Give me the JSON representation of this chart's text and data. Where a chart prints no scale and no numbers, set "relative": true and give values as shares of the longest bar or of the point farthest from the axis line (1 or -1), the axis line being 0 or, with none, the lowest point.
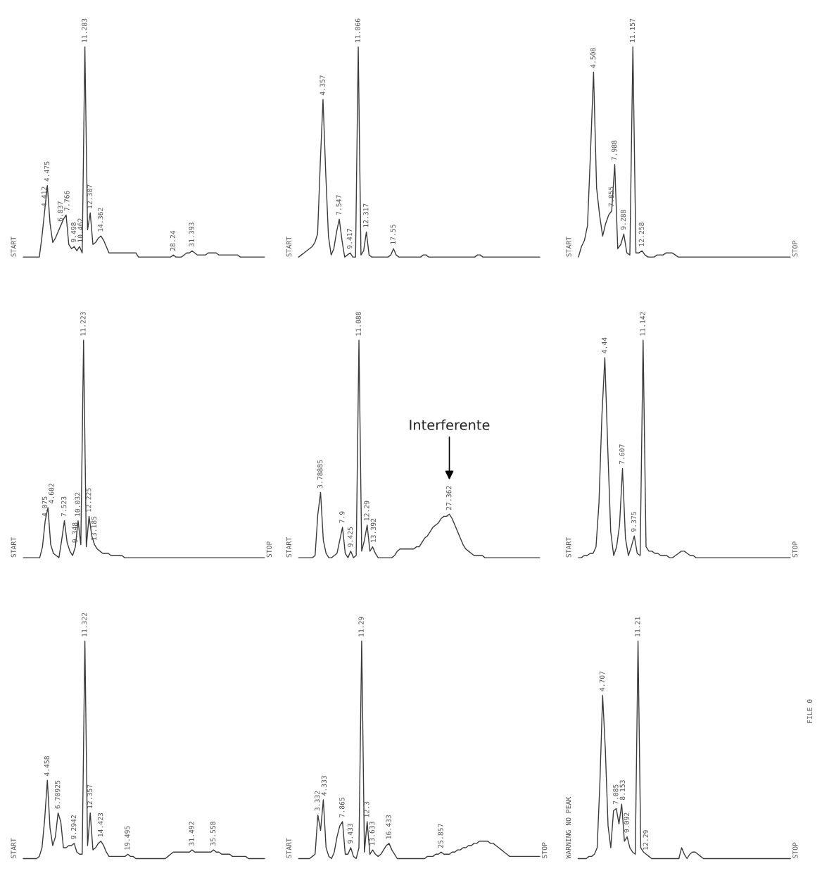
{
  "chart_data": [
    {
      "type": "line",
      "relative": true,
      "tick_labels": false,
      "categories": [
        null,
        null,
        null,
        null,
        null,
        null,
        null,
        null,
        null,
        null,
        null,
        null,
        null,
        null,
        null,
        null,
        null,
        null,
        null,
        null,
        null,
        null,
        null,
        null,
        null,
        null,
        null,
        null,
        null,
        null,
        null,
        null,
        null,
        null,
        null,
        null,
        null,
        null,
        null,
        null,
        null,
        null,
        null,
        null,
        null,
        null,
        null,
        null,
        null,
        null,
        null,
        null,
        null,
        null,
        null,
        null,
        null,
        null,
        null,
        null,
        null,
        null,
        null,
        null,
        null,
        null,
        null,
        null,
        null,
        null,
        null,
        null,
        null,
        null,
        null,
        null,
        null,
        null,
        null,
        null,
        null,
        null,
        null,
        null,
        null,
        null,
        null,
        null,
        null,
        null,
        null
      ],
      "series": [
        {
          "color": "#3a3a3a",
          "values": [
            0,
            0,
            0,
            0,
            0,
            0,
            0,
            0.1,
            0.22,
            0.34,
            0.16,
            0.07,
            0.09,
            0.12,
            0.15,
            0.18,
            0.2,
            0.06,
            0.04,
            0.05,
            0.03,
            0.05,
            0.02,
            1,
            0.13,
            0.21,
            0.06,
            0.07,
            0.09,
            0.1,
            0.08,
            0.05,
            0.02,
            0.02,
            0.02,
            0.02,
            0.02,
            0.02,
            0.02,
            0.02,
            0.02,
            0.02,
            0.02,
            0,
            0,
            0,
            0,
            0,
            0,
            0,
            0,
            0,
            0,
            0,
            0,
            0,
            0.01,
            0,
            0,
            0,
            0.01,
            0.02,
            0.02,
            0.03,
            0.02,
            0.01,
            0.01,
            0.01,
            0.01,
            0.02,
            0.02,
            0.02,
            0.02,
            0.01,
            0.01,
            0.01,
            0.01,
            0.01,
            0.01,
            0.01,
            0.01,
            0,
            0,
            0,
            0,
            0,
            0,
            0,
            0,
            0,
            0
          ]
        }
      ],
      "annotations": [
        "START",
        {
          "text": "4.412",
          "y": 0.22
        },
        {
          "text": "4.475",
          "y": 0.34
        },
        {
          "text": "6.837",
          "y": 0.15
        },
        {
          "text": "7.766",
          "y": 0.2
        },
        {
          "text": "9.498",
          "y": 0.05
        },
        {
          "text": "10.462",
          "y": 0.05
        },
        {
          "text": "11.283",
          "y": 1
        },
        {
          "text": "12.307",
          "y": 0.21
        },
        {
          "text": "14.362",
          "y": 0.1
        },
        {
          "text": "28.24",
          "y": 0.01
        },
        {
          "text": "31.393",
          "y": 0.03
        }
      ]
    },
    {
      "type": "line",
      "relative": true,
      "tick_labels": false,
      "categories": [
        null,
        null,
        null,
        null,
        null,
        null,
        null,
        null,
        null,
        null,
        null,
        null,
        null,
        null,
        null,
        null,
        null,
        null,
        null,
        null,
        null,
        null,
        null,
        null,
        null,
        null,
        null,
        null,
        null,
        null,
        null,
        null,
        null,
        null,
        null,
        null,
        null,
        null,
        null,
        null,
        null,
        null,
        null,
        null,
        null,
        null,
        null,
        null,
        null,
        null,
        null,
        null,
        null,
        null,
        null,
        null,
        null,
        null,
        null,
        null,
        null,
        null,
        null,
        null,
        null,
        null,
        null,
        null,
        null,
        null,
        null,
        null,
        null,
        null,
        null,
        null,
        null,
        null,
        null,
        null,
        null,
        null,
        null,
        null,
        null,
        null,
        null,
        null,
        null,
        null
      ],
      "series": [
        {
          "color": "#3a3a3a",
          "values": [
            0,
            0.01,
            0.02,
            0.03,
            0.04,
            0.05,
            0.07,
            0.11,
            0.45,
            0.75,
            0.4,
            0.1,
            0.01,
            0.04,
            0.12,
            0.18,
            0.08,
            0,
            0.01,
            0.02,
            0,
            0,
            1,
            0.01,
            0.03,
            0.12,
            0.01,
            0,
            0,
            0,
            0,
            0,
            0,
            0,
            0.01,
            0.04,
            0.01,
            0,
            0,
            0,
            0,
            0,
            0,
            0,
            0,
            0,
            0.01,
            0.01,
            0,
            0,
            0,
            0,
            0,
            0,
            0,
            0,
            0,
            0,
            0,
            0,
            0,
            0,
            0,
            0,
            0,
            0,
            0.01,
            0.01,
            0,
            0,
            0,
            0,
            0,
            0,
            0,
            0,
            0,
            0,
            0,
            0,
            0,
            0,
            0,
            0,
            0,
            0,
            0,
            0,
            0,
            0
          ]
        }
      ],
      "annotations": [
        "START",
        {
          "text": "4.357",
          "y": 0.75
        },
        {
          "text": "7.547",
          "y": 0.18
        },
        {
          "text": "9.417",
          "y": 0.02
        },
        {
          "text": "11.066",
          "y": 1
        },
        {
          "text": "12.317",
          "y": 0.12
        },
        {
          "text": "17.55",
          "y": 0.04
        }
      ]
    },
    {
      "type": "line",
      "relative": true,
      "tick_labels": false,
      "categories": [
        null,
        null,
        null,
        null,
        null,
        null,
        null,
        null,
        null,
        null,
        null,
        null,
        null,
        null,
        null,
        null,
        null,
        null,
        null,
        null,
        null,
        null,
        null,
        null,
        null,
        null,
        null,
        null,
        null,
        null,
        null,
        null,
        null,
        null,
        null,
        null,
        null,
        null,
        null,
        null,
        null,
        null,
        null,
        null,
        null,
        null,
        null,
        null,
        null,
        null,
        null,
        null,
        null,
        null,
        null,
        null,
        null,
        null,
        null,
        null,
        null,
        null,
        null,
        null,
        null,
        null,
        null,
        null,
        null,
        null,
        null
      ],
      "series": [
        {
          "color": "#3a3a3a",
          "values": [
            0,
            0.05,
            0.08,
            0.15,
            0.5,
            0.88,
            0.33,
            0.2,
            0.1,
            0.16,
            0.2,
            0.22,
            0.44,
            0.04,
            0.06,
            0.11,
            0.02,
            0.01,
            1,
            0.02,
            0.02,
            0.03,
            0.01,
            0,
            0,
            0,
            0.01,
            0.01,
            0.01,
            0.02,
            0.02,
            0.02,
            0.01,
            0,
            0,
            0,
            0,
            0,
            0,
            0,
            0,
            0,
            0,
            0,
            0,
            0,
            0,
            0,
            0,
            0,
            0,
            0,
            0,
            0,
            0,
            0,
            0,
            0,
            0,
            0,
            0,
            0,
            0,
            0,
            0,
            0,
            0,
            0,
            0,
            0,
            0
          ]
        }
      ],
      "annotations": [
        "START",
        "STOP",
        {
          "text": "4.508",
          "y": 0.88
        },
        {
          "text": "7.855",
          "y": 0.22
        },
        {
          "text": "7.988",
          "y": 0.44
        },
        {
          "text": "9.288",
          "y": 0.11
        },
        {
          "text": "11.157",
          "y": 1
        },
        {
          "text": "12.258",
          "y": 0.03
        }
      ]
    },
    {
      "type": "line",
      "relative": true,
      "tick_labels": false,
      "categories": [
        null,
        null,
        null,
        null,
        null,
        null,
        null,
        null,
        null,
        null,
        null,
        null,
        null,
        null,
        null,
        null,
        null,
        null,
        null,
        null,
        null,
        null,
        null,
        null,
        null,
        null,
        null,
        null,
        null,
        null,
        null,
        null,
        null,
        null,
        null,
        null,
        null,
        null,
        null,
        null,
        null,
        null,
        null,
        null,
        null,
        null,
        null,
        null,
        null,
        null,
        null,
        null,
        null,
        null,
        null,
        null,
        null,
        null,
        null,
        null,
        null,
        null,
        null,
        null,
        null,
        null,
        null,
        null,
        null,
        null,
        null,
        null,
        null,
        null,
        null,
        null,
        null,
        null,
        null,
        null,
        null,
        null,
        null,
        null,
        null,
        null,
        null,
        null,
        null
      ],
      "series": [
        {
          "color": "#3a3a3a",
          "values": [
            0,
            0,
            0,
            0,
            0,
            0,
            0,
            0.05,
            0.17,
            0.23,
            0.06,
            0.02,
            0.01,
            0,
            0.08,
            0.17,
            0.07,
            0.03,
            0.01,
            0.05,
            0.17,
            0.06,
            1,
            0.05,
            0.19,
            0.1,
            0.06,
            0.04,
            0.03,
            0.02,
            0.02,
            0.02,
            0.01,
            0.01,
            0.01,
            0.01,
            0.01,
            0,
            0,
            0,
            0,
            0,
            0,
            0,
            0,
            0,
            0,
            0,
            0,
            0,
            0,
            0,
            0,
            0,
            0,
            0,
            0,
            0,
            0,
            0,
            0,
            0,
            0,
            0,
            0,
            0,
            0,
            0,
            0,
            0,
            0,
            0,
            0,
            0,
            0,
            0,
            0,
            0,
            0,
            0,
            0,
            0,
            0,
            0,
            0,
            0,
            0,
            0,
            0
          ]
        }
      ],
      "annotations": [
        "START",
        "STOP",
        {
          "text": "4.075",
          "y": 0.17
        },
        {
          "text": "4.602",
          "y": 0.23
        },
        {
          "text": "7.523",
          "y": 0.17
        },
        {
          "text": "9.348",
          "y": 0.05
        },
        {
          "text": "10.032",
          "y": 0.17
        },
        {
          "text": "11.223",
          "y": 1
        },
        {
          "text": "12.225",
          "y": 0.19
        },
        {
          "text": "13.185",
          "y": 0.06
        }
      ]
    },
    {
      "type": "line",
      "relative": true,
      "tick_labels": false,
      "categories": [
        null,
        null,
        null,
        null,
        null,
        null,
        null,
        null,
        null,
        null,
        null,
        null,
        null,
        null,
        null,
        null,
        null,
        null,
        null,
        null,
        null,
        null,
        null,
        null,
        null,
        null,
        null,
        null,
        null,
        null,
        null,
        null,
        null,
        null,
        null,
        null,
        null,
        null,
        null,
        null,
        null,
        null,
        null,
        null,
        null,
        null,
        null,
        null,
        null,
        null,
        null,
        null,
        null,
        null,
        null,
        null,
        null,
        null,
        null,
        null,
        null,
        null,
        null,
        null,
        null,
        null,
        null,
        null,
        null,
        null,
        null,
        null,
        null,
        null,
        null,
        null,
        null,
        null,
        null,
        null,
        null,
        null,
        null,
        null,
        null,
        null,
        null,
        null,
        null
      ],
      "series": [
        {
          "color": "#3a3a3a",
          "values": [
            0,
            0,
            0,
            0,
            0,
            0,
            0.01,
            0.2,
            0.3,
            0.08,
            0.02,
            0,
            0,
            0.01,
            0.02,
            0.08,
            0.14,
            0.02,
            0,
            0.03,
            0,
            0.01,
            1,
            0.03,
            0.08,
            0.15,
            0.03,
            0.05,
            0.02,
            0,
            0,
            0,
            0,
            0,
            0,
            0.01,
            0.03,
            0.04,
            0.04,
            0.04,
            0.04,
            0.04,
            0.04,
            0.05,
            0.05,
            0.07,
            0.09,
            0.1,
            0.12,
            0.14,
            0.15,
            0.16,
            0.18,
            0.19,
            0.19,
            0.2,
            0.18,
            0.15,
            0.12,
            0.09,
            0.06,
            0.04,
            0.03,
            0.02,
            0.01,
            0.01,
            0.01,
            0.01,
            0,
            0,
            0,
            0,
            0,
            0,
            0,
            0,
            0,
            0,
            0,
            0,
            0,
            0,
            0,
            0,
            0,
            0,
            0,
            0,
            0
          ]
        }
      ],
      "annotations": [
        "START",
        {
          "text": "3.78885",
          "y": 0.3
        },
        {
          "text": "7.9",
          "y": 0.14
        },
        {
          "text": "9.425",
          "y": 0.03
        },
        {
          "text": "11.088",
          "y": 1
        },
        {
          "text": "12.29",
          "y": 0.15
        },
        {
          "text": "13.392",
          "y": 0.05
        },
        {
          "text": "27.362",
          "y": 0.2
        },
        "Interferente"
      ]
    },
    {
      "type": "line",
      "relative": true,
      "tick_labels": false,
      "categories": [
        null,
        null,
        null,
        null,
        null,
        null,
        null,
        null,
        null,
        null,
        null,
        null,
        null,
        null,
        null,
        null,
        null,
        null,
        null,
        null,
        null,
        null,
        null,
        null,
        null,
        null,
        null,
        null,
        null,
        null,
        null,
        null,
        null,
        null,
        null,
        null,
        null,
        null,
        null,
        null,
        null,
        null,
        null,
        null,
        null,
        null,
        null,
        null,
        null,
        null,
        null,
        null,
        null,
        null,
        null,
        null,
        null,
        null,
        null,
        null,
        null,
        null,
        null,
        null,
        null,
        null,
        null,
        null,
        null,
        null,
        null,
        null,
        null
      ],
      "series": [
        {
          "color": "#3a3a3a",
          "values": [
            0,
            0,
            0.01,
            0.01,
            0.02,
            0.02,
            0.05,
            0.25,
            0.65,
            0.92,
            0.5,
            0.12,
            0.01,
            0.05,
            0.15,
            0.41,
            0.09,
            0.01,
            0.05,
            0.1,
            0.02,
            0.01,
            1,
            0.05,
            0.03,
            0.03,
            0.02,
            0.02,
            0.01,
            0.01,
            0.01,
            0,
            0,
            0.01,
            0.02,
            0.03,
            0.03,
            0.02,
            0.01,
            0.01,
            0,
            0,
            0,
            0,
            0,
            0,
            0,
            0,
            0,
            0,
            0,
            0,
            0,
            0,
            0,
            0,
            0,
            0,
            0,
            0,
            0,
            0,
            0,
            0,
            0,
            0,
            0,
            0,
            0,
            0,
            0,
            0,
            0
          ]
        }
      ],
      "annotations": [
        "START",
        "STOP",
        {
          "text": "4.44",
          "y": 0.92
        },
        {
          "text": "7.607",
          "y": 0.41
        },
        {
          "text": "9.375",
          "y": 0.1
        },
        {
          "text": "11.142",
          "y": 1
        }
      ]
    },
    {
      "type": "line",
      "relative": true,
      "tick_labels": false,
      "categories": [
        null,
        null,
        null,
        null,
        null,
        null,
        null,
        null,
        null,
        null,
        null,
        null,
        null,
        null,
        null,
        null,
        null,
        null,
        null,
        null,
        null,
        null,
        null,
        null,
        null,
        null,
        null,
        null,
        null,
        null,
        null,
        null,
        null,
        null,
        null,
        null,
        null,
        null,
        null,
        null,
        null,
        null,
        null,
        null,
        null,
        null,
        null,
        null,
        null,
        null,
        null,
        null,
        null,
        null,
        null,
        null,
        null,
        null,
        null,
        null,
        null,
        null,
        null,
        null,
        null,
        null,
        null,
        null,
        null,
        null,
        null,
        null,
        null,
        null,
        null,
        null,
        null,
        null,
        null,
        null,
        null,
        null,
        null,
        null,
        null,
        null,
        null,
        null,
        null,
        null,
        null
      ],
      "series": [
        {
          "color": "#3a3a3a",
          "values": [
            0,
            0,
            0,
            0,
            0,
            0,
            0.01,
            0.05,
            0.18,
            0.36,
            0.14,
            0.06,
            0.1,
            0.21,
            0.17,
            0.05,
            0.05,
            0.06,
            0.06,
            0.07,
            0.03,
            0.02,
            0.02,
            1,
            0.06,
            0.21,
            0.04,
            0.05,
            0.07,
            0.08,
            0.06,
            0.03,
            0.01,
            0.01,
            0.01,
            0.01,
            0.01,
            0.01,
            0.01,
            0.02,
            0.01,
            0.01,
            0,
            0,
            0,
            0,
            0,
            0,
            0,
            0,
            0,
            0,
            0,
            0,
            0.01,
            0.02,
            0.03,
            0.03,
            0.03,
            0.03,
            0.03,
            0.03,
            0.03,
            0.04,
            0.03,
            0.03,
            0.03,
            0.03,
            0.03,
            0.03,
            0.03,
            0.04,
            0.03,
            0.03,
            0.02,
            0.02,
            0.02,
            0.02,
            0.01,
            0.01,
            0.01,
            0.01,
            0.01,
            0.01,
            0,
            0,
            0,
            0,
            0,
            0,
            0
          ]
        }
      ],
      "annotations": [
        "START",
        {
          "text": "4.458",
          "y": 0.36
        },
        {
          "text": "6.70925",
          "y": 0.21
        },
        {
          "text": "9.2942",
          "y": 0.07
        },
        {
          "text": "11.322",
          "y": 1
        },
        {
          "text": "12.357",
          "y": 0.21
        },
        {
          "text": "14.423",
          "y": 0.08
        },
        {
          "text": "19.495",
          "y": 0.02
        },
        {
          "text": "31.492",
          "y": 0.04
        },
        {
          "text": "35.558",
          "y": 0.04
        }
      ]
    },
    {
      "type": "line",
      "relative": true,
      "tick_labels": false,
      "categories": [
        null,
        null,
        null,
        null,
        null,
        null,
        null,
        null,
        null,
        null,
        null,
        null,
        null,
        null,
        null,
        null,
        null,
        null,
        null,
        null,
        null,
        null,
        null,
        null,
        null,
        null,
        null,
        null,
        null,
        null,
        null,
        null,
        null,
        null,
        null,
        null,
        null,
        null,
        null,
        null,
        null,
        null,
        null,
        null,
        null,
        null,
        null,
        null,
        null,
        null,
        null,
        null,
        null,
        null,
        null,
        null,
        null,
        null,
        null,
        null,
        null,
        null,
        null,
        null,
        null,
        null,
        null,
        null,
        null,
        null,
        null,
        null,
        null,
        null,
        null,
        null,
        null,
        null,
        null,
        null,
        null,
        null,
        null,
        null,
        null,
        null,
        null,
        null,
        null
      ],
      "series": [
        {
          "color": "#3a3a3a",
          "values": [
            0,
            0,
            0,
            0,
            0,
            0.01,
            0.02,
            0.2,
            0.13,
            0.27,
            0.05,
            0.01,
            0,
            0.03,
            0.1,
            0.15,
            0.17,
            0.02,
            0.02,
            0.05,
            0.01,
            0,
            0.05,
            1,
            0.03,
            0.17,
            0.02,
            0.04,
            0.02,
            0.01,
            0.02,
            0.04,
            0.06,
            0.07,
            0.04,
            0.02,
            0,
            0,
            0,
            0,
            0,
            0,
            0,
            0,
            0,
            0,
            0,
            0.01,
            0.01,
            0.01,
            0.02,
            0.02,
            0.03,
            0.02,
            0.02,
            0.02,
            0.03,
            0.03,
            0.04,
            0.04,
            0.05,
            0.05,
            0.06,
            0.06,
            0.07,
            0.07,
            0.08,
            0.08,
            0.08,
            0.08,
            0.07,
            0.07,
            0.06,
            0.05,
            0.04,
            0.03,
            0.02,
            0.01,
            0.01,
            0.01,
            0.01,
            0.01,
            0.01,
            0.01,
            0.01,
            0.01,
            0.01,
            0.01,
            0.01
          ]
        }
      ],
      "annotations": [
        "START",
        "STOP",
        {
          "text": "3.332",
          "y": 0.2
        },
        {
          "text": "4.333",
          "y": 0.27
        },
        {
          "text": "7.865",
          "y": 0.17
        },
        {
          "text": "9.433",
          "y": 0.05
        },
        {
          "text": "11.29",
          "y": 1
        },
        {
          "text": "12.3",
          "y": 0.17
        },
        {
          "text": "13.633",
          "y": 0.04
        },
        {
          "text": "16.433",
          "y": 0.07
        },
        {
          "text": "25.857",
          "y": 0.03
        }
      ]
    },
    {
      "type": "line",
      "relative": true,
      "tick_labels": false,
      "categories": [
        null,
        null,
        null,
        null,
        null,
        null,
        null,
        null,
        null,
        null,
        null,
        null,
        null,
        null,
        null,
        null,
        null,
        null,
        null,
        null,
        null,
        null,
        null,
        null,
        null,
        null,
        null,
        null,
        null,
        null,
        null,
        null,
        null,
        null,
        null,
        null,
        null,
        null,
        null,
        null,
        null,
        null,
        null,
        null,
        null,
        null,
        null,
        null,
        null,
        null,
        null,
        null,
        null,
        null,
        null,
        null,
        null,
        null,
        null,
        null,
        null,
        null,
        null,
        null,
        null,
        null,
        null,
        null,
        null,
        null,
        null,
        null,
        null,
        null,
        null,
        null,
        null,
        null,
        null
      ],
      "series": [
        {
          "color": "#3a3a3a",
          "values": [
            0,
            0,
            0,
            0,
            0.01,
            0.01,
            0.02,
            0.05,
            0.35,
            0.75,
            0.5,
            0.15,
            0.05,
            0.22,
            0.23,
            0.16,
            0.25,
            0.08,
            0.1,
            0.05,
            0.03,
            0.02,
            1,
            0.05,
            0.03,
            0.02,
            0.01,
            0,
            0,
            0,
            0,
            0,
            0,
            0,
            0,
            0,
            0,
            0,
            0.05,
            0.02,
            0,
            0.02,
            0.03,
            0.03,
            0.02,
            0.01,
            0,
            0,
            0,
            0,
            0,
            0,
            0,
            0,
            0,
            0,
            0,
            0,
            0,
            0,
            0,
            0,
            0,
            0,
            0,
            0,
            0,
            0,
            0,
            0,
            0,
            0,
            0,
            0,
            0,
            0,
            0,
            0,
            0
          ]
        }
      ],
      "annotations": [
        "WARNING NO PEAK",
        "STOP",
        "FILE 0",
        {
          "text": "4.707",
          "y": 0.75
        },
        {
          "text": "7.085",
          "y": 0.23
        },
        {
          "text": "8.153",
          "y": 0.25
        },
        {
          "text": "9.092",
          "y": 0.1
        },
        {
          "text": "11.21",
          "y": 1
        },
        {
          "text": "12.29",
          "y": 0.02
        }
      ]
    }
  ]
}
